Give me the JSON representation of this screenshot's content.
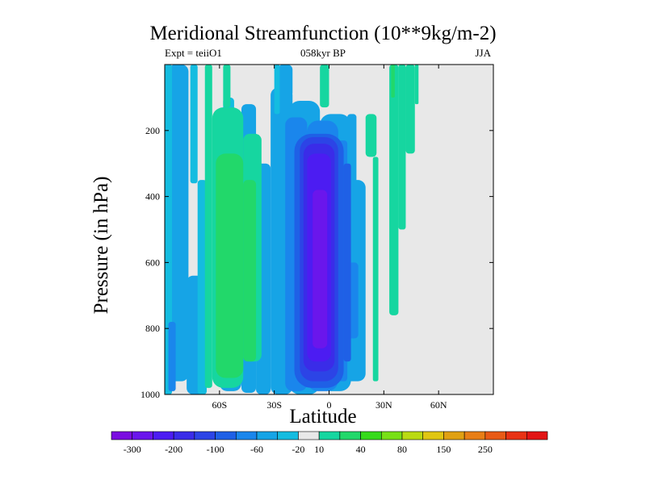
{
  "chart_data": {
    "type": "heatmap",
    "title": "Meridional Streamfunction (10**9kg/m-2)",
    "subtitle_left": "Expt = teiiO1",
    "subtitle_center": "058kyr BP",
    "subtitle_right": "JJA",
    "xlabel": "Latitude",
    "ylabel": "Pressure (in hPa)",
    "x_ticks": [
      {
        "value": -60,
        "label": "60S"
      },
      {
        "value": -30,
        "label": "30S"
      },
      {
        "value": 0,
        "label": "0"
      },
      {
        "value": 30,
        "label": "30N"
      },
      {
        "value": 60,
        "label": "60N"
      }
    ],
    "y_ticks": [
      200,
      400,
      600,
      800,
      1000
    ],
    "xlim": [
      -90,
      90
    ],
    "ylim": [
      1000,
      0
    ],
    "colorbar": {
      "colors": [
        "#7a0de0",
        "#6a16ec",
        "#4c1cf2",
        "#3a2ce8",
        "#2c44e6",
        "#1f60e6",
        "#1a86ec",
        "#16a4e6",
        "#14bce0",
        "#e8e8e8",
        "#16d6a0",
        "#22d86a",
        "#36da1a",
        "#78e016",
        "#bada12",
        "#e0c612",
        "#e0a012",
        "#e87e16",
        "#e85a16",
        "#e83214",
        "#e21414"
      ],
      "labels": [
        "-300",
        "-200",
        "-100",
        "-60",
        "-20",
        "10",
        "40",
        "80",
        "150",
        "250"
      ]
    },
    "contour_levels": [
      {
        "level": -20,
        "color": "#16a4e6",
        "cells": [
          {
            "lat": [
              -88,
              -77
            ],
            "p": [
              0,
              960
            ]
          },
          {
            "lat": [
              -78,
              -68
            ],
            "p": [
              640,
              1000
            ]
          },
          {
            "lat": [
              -60,
              -48
            ],
            "p": [
              160,
              990
            ]
          },
          {
            "lat": [
              -48,
              -40
            ],
            "p": [
              120,
              995
            ]
          },
          {
            "lat": [
              -40,
              -32
            ],
            "p": [
              300,
              1000
            ]
          },
          {
            "lat": [
              -28,
              -20
            ],
            "p": [
              0,
              100
            ]
          },
          {
            "lat": [
              -32,
              -20
            ],
            "p": [
              70,
              1000
            ]
          },
          {
            "lat": [
              -22,
              -5
            ],
            "p": [
              110,
              1000
            ]
          },
          {
            "lat": [
              -5,
              12
            ],
            "p": [
              150,
              990
            ]
          },
          {
            "lat": [
              8,
              20
            ],
            "p": [
              350,
              960
            ]
          },
          {
            "lat": [
              10,
              15
            ],
            "p": [
              150,
              360
            ]
          }
        ]
      },
      {
        "level": -20,
        "color": "#14bce0",
        "cells": [
          {
            "lat": [
              -90,
              -86
            ],
            "p": [
              0,
              1000
            ]
          },
          {
            "lat": [
              -76,
              -72
            ],
            "p": [
              0,
              360
            ]
          },
          {
            "lat": [
              -72,
              -67
            ],
            "p": [
              350,
              1000
            ]
          },
          {
            "lat": [
              -58,
              -52
            ],
            "p": [
              100,
              200
            ]
          },
          {
            "lat": [
              -30,
              -27
            ],
            "p": [
              0,
              150
            ]
          }
        ]
      },
      {
        "level": -60,
        "color": "#1a86ec",
        "cells": [
          {
            "lat": [
              -88,
              -84
            ],
            "p": [
              780,
              990
            ]
          },
          {
            "lat": [
              -24,
              -12
            ],
            "p": [
              160,
              990
            ]
          },
          {
            "lat": [
              -12,
              5
            ],
            "p": [
              170,
              990
            ]
          },
          {
            "lat": [
              5,
              10
            ],
            "p": [
              230,
              960
            ]
          },
          {
            "lat": [
              10,
              16
            ],
            "p": [
              600,
              830
            ]
          }
        ]
      },
      {
        "level": -100,
        "color": "#1f60e6",
        "cells": [
          {
            "lat": [
              -19,
              8
            ],
            "p": [
              210,
              980
            ]
          },
          {
            "lat": [
              8,
              12
            ],
            "p": [
              300,
              900
            ]
          }
        ]
      },
      {
        "level": -200,
        "color": "#2c44e6",
        "cells": [
          {
            "lat": [
              -16,
              5
            ],
            "p": [
              220,
              960
            ]
          }
        ]
      },
      {
        "level": -200,
        "color": "#3a2ce8",
        "cells": [
          {
            "lat": [
              -14,
              3
            ],
            "p": [
              240,
              930
            ]
          }
        ]
      },
      {
        "level": -300,
        "color": "#4c1cf2",
        "cells": [
          {
            "lat": [
              -12,
              1
            ],
            "p": [
              270,
              900
            ]
          }
        ]
      },
      {
        "level": -300,
        "color": "#6a16ec",
        "cells": [
          {
            "lat": [
              -9,
              -1
            ],
            "p": [
              380,
              860
            ]
          }
        ]
      },
      {
        "level": 10,
        "color": "#16d6a0",
        "cells": [
          {
            "lat": [
              -68,
              -64
            ],
            "p": [
              0,
              980
            ]
          },
          {
            "lat": [
              -64,
              -47
            ],
            "p": [
              130,
              980
            ]
          },
          {
            "lat": [
              -47,
              -37
            ],
            "p": [
              210,
              900
            ]
          },
          {
            "lat": [
              -58,
              -54
            ],
            "p": [
              0,
              130
            ]
          },
          {
            "lat": [
              20,
              26
            ],
            "p": [
              150,
              280
            ]
          },
          {
            "lat": [
              24,
              27
            ],
            "p": [
              280,
              960
            ]
          },
          {
            "lat": [
              33,
              38
            ],
            "p": [
              0,
              760
            ]
          },
          {
            "lat": [
              38,
              42
            ],
            "p": [
              0,
              500
            ]
          },
          {
            "lat": [
              42,
              47
            ],
            "p": [
              0,
              270
            ]
          },
          {
            "lat": [
              47,
              49
            ],
            "p": [
              0,
              120
            ]
          },
          {
            "lat": [
              -5,
              0
            ],
            "p": [
              0,
              130
            ]
          }
        ]
      },
      {
        "level": 40,
        "color": "#22d86a",
        "cells": [
          {
            "lat": [
              -62,
              -47
            ],
            "p": [
              270,
              950
            ]
          },
          {
            "lat": [
              -47,
              -40
            ],
            "p": [
              350,
              900
            ]
          },
          {
            "lat": [
              34,
              36
            ],
            "p": [
              0,
              100
            ]
          }
        ]
      }
    ]
  }
}
